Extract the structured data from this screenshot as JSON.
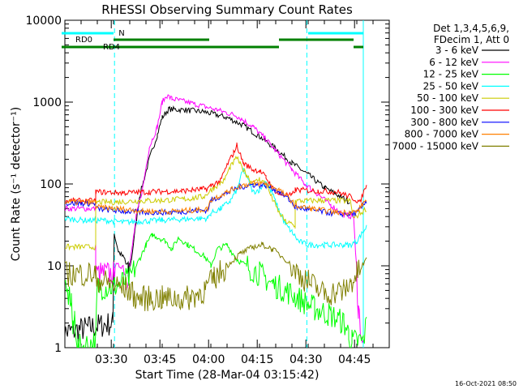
{
  "chart_data": {
    "type": "line",
    "title": "RHESSI Observing Summary Count Rates",
    "xlabel": "Start Time (28-Mar-04 03:15:42)",
    "ylabel": "Count Rate (s⁻¹ detector⁻¹)",
    "yscale": "log",
    "ylim": [
      1,
      10000
    ],
    "xlim_minutes": [
      0,
      100
    ],
    "x_tick_labels": [
      "03:30",
      "03:45",
      "04:00",
      "04:15",
      "04:30",
      "04:45"
    ],
    "x_tick_minutes": [
      14.3,
      29.3,
      44.3,
      59.3,
      74.3,
      89.3
    ],
    "y_tick_labels": [
      "1",
      "10",
      "100",
      "1000",
      "10000"
    ],
    "y_tick_values": [
      1,
      10,
      100,
      1000,
      10000
    ],
    "legend_header": [
      "Det 1,3,4,5,6,9,",
      "FDecim 1, Att 0"
    ],
    "legend_position": "right",
    "timestamp": "16-Oct-2021 08:50",
    "series": [
      {
        "name": "3 - 6 keV",
        "color": "#000000",
        "points": [
          [
            -1,
            1.5
          ],
          [
            14.8,
            2
          ],
          [
            15.2,
            25
          ],
          [
            16.5,
            15
          ],
          [
            18.5,
            12
          ],
          [
            19.5,
            8
          ],
          [
            20.5,
            12
          ],
          [
            23,
            70
          ],
          [
            26,
            200
          ],
          [
            28.5,
            400
          ],
          [
            30,
            650
          ],
          [
            32,
            820
          ],
          [
            37,
            800
          ],
          [
            43,
            760
          ],
          [
            50,
            650
          ],
          [
            55,
            520
          ],
          [
            60,
            380
          ],
          [
            65,
            270
          ],
          [
            70,
            180
          ],
          [
            75,
            130
          ],
          [
            80,
            90
          ],
          [
            85,
            70
          ],
          [
            87.8,
            60
          ]
        ]
      },
      {
        "name": "6 - 12 keV",
        "color": "#ff00ff",
        "points": [
          [
            -1,
            50
          ],
          [
            9.5,
            50
          ],
          [
            9.5,
            8
          ],
          [
            15,
            8
          ],
          [
            15.5,
            10
          ],
          [
            18,
            10
          ],
          [
            19,
            7
          ],
          [
            20,
            10
          ],
          [
            22,
            40
          ],
          [
            24,
            90
          ],
          [
            26,
            280
          ],
          [
            28.5,
            500
          ],
          [
            30,
            1000
          ],
          [
            31.5,
            1200
          ],
          [
            33,
            1100
          ],
          [
            40,
            950
          ],
          [
            47,
            800
          ],
          [
            53,
            680
          ],
          [
            58,
            500
          ],
          [
            62,
            350
          ],
          [
            66,
            230
          ],
          [
            70,
            150
          ],
          [
            74,
            100
          ],
          [
            78,
            75
          ],
          [
            82,
            55
          ],
          [
            86,
            42
          ],
          [
            89,
            40
          ],
          [
            90.5,
            3
          ],
          [
            92,
            1
          ]
        ]
      },
      {
        "name": "12 - 25 keV",
        "color": "#00ff00",
        "points": [
          [
            -1,
            5
          ],
          [
            2,
            4
          ],
          [
            2.5,
            1.5
          ],
          [
            3,
            2.5
          ],
          [
            4,
            1
          ],
          [
            9.5,
            1.2
          ],
          [
            10,
            5.5
          ],
          [
            15,
            5.5
          ],
          [
            20,
            7
          ],
          [
            23,
            12
          ],
          [
            25,
            18
          ],
          [
            27,
            24
          ],
          [
            29,
            22
          ],
          [
            31,
            20
          ],
          [
            33,
            16
          ],
          [
            35,
            22
          ],
          [
            38,
            18
          ],
          [
            43,
            13
          ],
          [
            45,
            10
          ],
          [
            47,
            16
          ],
          [
            50,
            18
          ],
          [
            53,
            12
          ],
          [
            56,
            10
          ],
          [
            60,
            8
          ],
          [
            64,
            6
          ],
          [
            68,
            5
          ],
          [
            72,
            4
          ],
          [
            77,
            3
          ],
          [
            82,
            2.5
          ],
          [
            86,
            2
          ],
          [
            87.5,
            1.5
          ],
          [
            88.5,
            1.2
          ],
          [
            92,
            1.2
          ],
          [
            93,
            2
          ]
        ]
      },
      {
        "name": "25 - 50 keV",
        "color": "#00ffff",
        "points": [
          [
            -1,
            38
          ],
          [
            6,
            36
          ],
          [
            12,
            36
          ],
          [
            18,
            34
          ],
          [
            24,
            35
          ],
          [
            30,
            36
          ],
          [
            36,
            37
          ],
          [
            42,
            38
          ],
          [
            44,
            38
          ],
          [
            45,
            44
          ],
          [
            48,
            50
          ],
          [
            51,
            62
          ],
          [
            53,
            85
          ],
          [
            55,
            150
          ],
          [
            57,
            100
          ],
          [
            58,
            80
          ],
          [
            60,
            85
          ],
          [
            62,
            110
          ],
          [
            64,
            75
          ],
          [
            66,
            48
          ],
          [
            68,
            32
          ],
          [
            70,
            26
          ],
          [
            72,
            20
          ],
          [
            75,
            18
          ],
          [
            80,
            18
          ],
          [
            86,
            18
          ],
          [
            88,
            18
          ],
          [
            90,
            20
          ],
          [
            93,
            30
          ]
        ]
      },
      {
        "name": "50 - 100 keV",
        "color": "#cccc00",
        "points": [
          [
            -1,
            17
          ],
          [
            9.5,
            17
          ],
          [
            9.5,
            60
          ],
          [
            16,
            60
          ],
          [
            22,
            62
          ],
          [
            30,
            63
          ],
          [
            38,
            66
          ],
          [
            43,
            70
          ],
          [
            45,
            85
          ],
          [
            49,
            110
          ],
          [
            51,
            160
          ],
          [
            53,
            210
          ],
          [
            54,
            175
          ],
          [
            56,
            130
          ],
          [
            58,
            100
          ],
          [
            60,
            115
          ],
          [
            62,
            100
          ],
          [
            64,
            65
          ],
          [
            66,
            45
          ],
          [
            68,
            35
          ],
          [
            70,
            32
          ],
          [
            71,
            30
          ],
          [
            71,
            62
          ],
          [
            80,
            63
          ],
          [
            88,
            62
          ],
          [
            89,
            38
          ],
          [
            93,
            50
          ]
        ]
      },
      {
        "name": "100 - 300 keV",
        "color": "#ff0000",
        "points": [
          [
            -1,
            62
          ],
          [
            9.5,
            62
          ],
          [
            9.5,
            80
          ],
          [
            18,
            78
          ],
          [
            26,
            80
          ],
          [
            36,
            82
          ],
          [
            42,
            86
          ],
          [
            44,
            88
          ],
          [
            45,
            95
          ],
          [
            48,
            110
          ],
          [
            50,
            170
          ],
          [
            52,
            240
          ],
          [
            53,
            300
          ],
          [
            55,
            180
          ],
          [
            58,
            150
          ],
          [
            60,
            145
          ],
          [
            62,
            120
          ],
          [
            64,
            90
          ],
          [
            66,
            75
          ],
          [
            70,
            72
          ],
          [
            71,
            85
          ],
          [
            78,
            82
          ],
          [
            84,
            80
          ],
          [
            88,
            70
          ],
          [
            91,
            60
          ],
          [
            93,
            100
          ]
        ]
      },
      {
        "name": "300 - 800 keV",
        "color": "#0000ff",
        "points": [
          [
            -1,
            58
          ],
          [
            9.5,
            58
          ],
          [
            9.5,
            50
          ],
          [
            16,
            47
          ],
          [
            24,
            45
          ],
          [
            32,
            45
          ],
          [
            40,
            47
          ],
          [
            44,
            48
          ],
          [
            45,
            62
          ],
          [
            50,
            78
          ],
          [
            54,
            92
          ],
          [
            58,
            98
          ],
          [
            62,
            96
          ],
          [
            66,
            82
          ],
          [
            70,
            60
          ],
          [
            71,
            52
          ],
          [
            76,
            48
          ],
          [
            84,
            43
          ],
          [
            88,
            43
          ],
          [
            90,
            44
          ],
          [
            93,
            62
          ]
        ]
      },
      {
        "name": "800 - 7000 keV",
        "color": "#ff8000",
        "points": [
          [
            -1,
            60
          ],
          [
            9.5,
            60
          ],
          [
            9.5,
            52
          ],
          [
            16,
            50
          ],
          [
            24,
            47
          ],
          [
            32,
            46
          ],
          [
            40,
            48
          ],
          [
            44,
            49
          ],
          [
            45,
            64
          ],
          [
            50,
            80
          ],
          [
            54,
            95
          ],
          [
            58,
            102
          ],
          [
            62,
            100
          ],
          [
            66,
            85
          ],
          [
            70,
            62
          ],
          [
            71,
            54
          ],
          [
            76,
            50
          ],
          [
            84,
            45
          ],
          [
            88,
            45
          ],
          [
            90,
            46
          ],
          [
            93,
            65
          ]
        ]
      },
      {
        "name": "7000 - 15000 keV",
        "color": "#808000",
        "points": [
          [
            -1,
            8
          ],
          [
            9.5,
            8
          ],
          [
            9.5,
            7
          ],
          [
            14,
            6
          ],
          [
            20,
            5
          ],
          [
            22,
            4
          ],
          [
            30,
            4
          ],
          [
            38,
            4
          ],
          [
            43,
            5
          ],
          [
            46,
            7
          ],
          [
            50,
            10
          ],
          [
            54,
            14
          ],
          [
            58,
            17
          ],
          [
            61,
            18
          ],
          [
            64,
            16
          ],
          [
            68,
            12
          ],
          [
            72,
            8
          ],
          [
            76,
            6
          ],
          [
            80,
            4.5
          ],
          [
            86,
            5
          ],
          [
            88,
            6
          ],
          [
            90,
            8
          ],
          [
            93,
            12
          ]
        ]
      }
    ],
    "annotations": {
      "attenuator_label": "N",
      "bar_labels": [
        "RD0",
        "RD4"
      ],
      "bars": [
        {
          "label": "RD0",
          "color": "#00ffff",
          "level": "high",
          "segments_minutes": [
            [
              -1,
              15
            ],
            [
              75,
              92
            ]
          ]
        },
        {
          "label": "RD4",
          "color": "#008000",
          "level": "upper",
          "segments_minutes": [
            [
              15,
              44.5
            ],
            [
              66,
              89
            ]
          ]
        },
        {
          "label": "RD4",
          "color": "#008000",
          "level": "lower",
          "segments_minutes": [
            [
              -1,
              44.5
            ],
            [
              44.5,
              66
            ],
            [
              89,
              92
            ]
          ]
        }
      ],
      "cyan_boundaries_minutes": [
        -1,
        15.3,
        74.6,
        92
      ]
    }
  }
}
